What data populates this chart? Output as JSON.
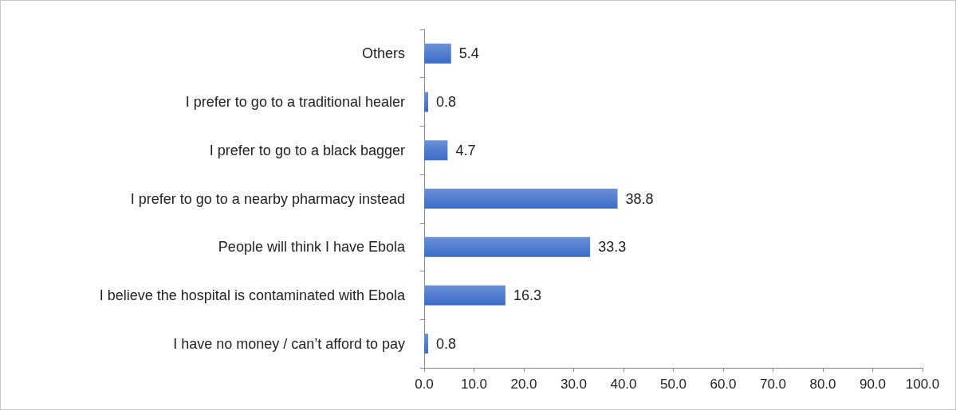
{
  "chart_data": {
    "type": "bar",
    "orientation": "horizontal",
    "categories": [
      "Others",
      "I prefer to go to a traditional healer",
      "I prefer to go to a black bagger",
      "I prefer to go to a nearby pharmacy instead",
      "People will think I have Ebola",
      "I believe the hospital is contaminated with Ebola",
      "I have no money / can’t afford to pay"
    ],
    "values": [
      5.4,
      0.8,
      4.7,
      38.8,
      33.3,
      16.3,
      0.8
    ],
    "color": "#3a6cc8",
    "xlim": [
      0,
      100
    ],
    "xticks": [
      {
        "value": 0,
        "label": "0.0"
      },
      {
        "value": 10,
        "label": "10.0"
      },
      {
        "value": 20,
        "label": "20.0"
      },
      {
        "value": 30,
        "label": "30.0"
      },
      {
        "value": 40,
        "label": "40.0"
      },
      {
        "value": 50,
        "label": "50.0"
      },
      {
        "value": 60,
        "label": "60.0"
      },
      {
        "value": 70,
        "label": "70.0"
      },
      {
        "value": 80,
        "label": "80.0"
      },
      {
        "value": 90,
        "label": "90.0"
      },
      {
        "value": 100,
        "label": "100.0"
      }
    ],
    "grid": false,
    "data_labels": true
  }
}
